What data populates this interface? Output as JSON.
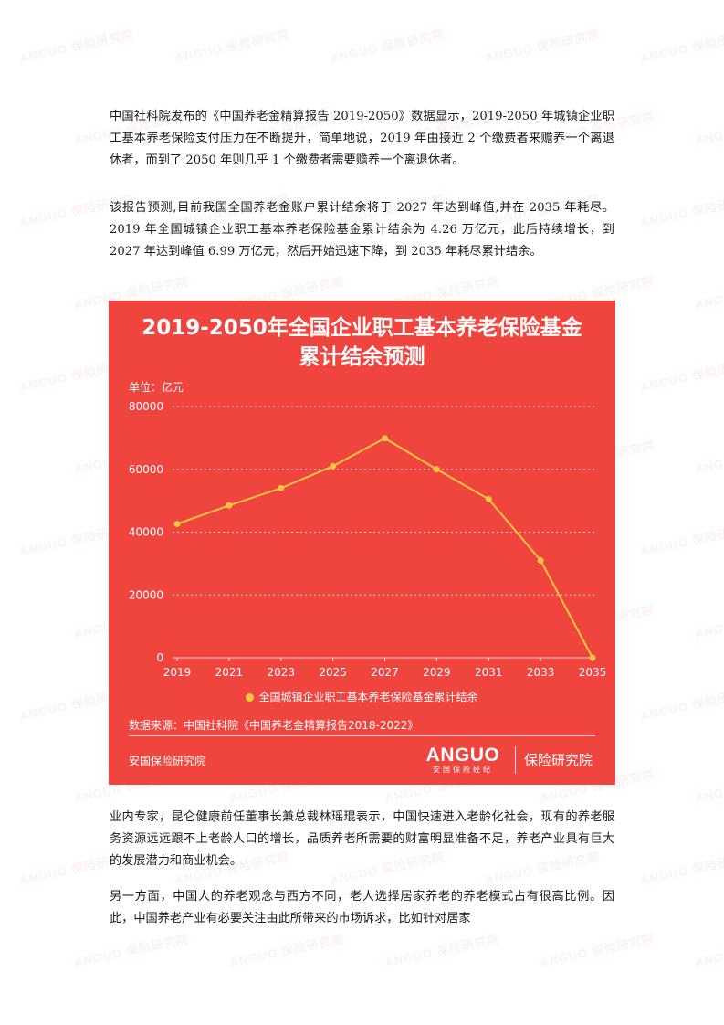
{
  "watermark": {
    "text": "ANGUO",
    "sub": "保险研究院"
  },
  "paragraphs": {
    "p1": "中国社科院发布的《中国养老金精算报告 2019-2050》数据显示，2019-2050 年城镇企业职工基本养老保险支付压力在不断提升，简单地说，2019 年由接近 2 个缴费者来赡养一个离退休者，而到了 2050 年则几乎 1 个缴费者需要赡养一个离退休者。",
    "p2": "该报告预测,目前我国全国养老金账户累计结余将于 2027 年达到峰值,并在 2035 年耗尽。2019 年全国城镇企业职工基本养老保险基金累计结余为 4.26 万亿元，此后持续增长，到 2027 年达到峰值 6.99 万亿元，然后开始迅速下降，到 2035 年耗尽累计结余。",
    "p3": "业内专家，昆仑健康前任董事长兼总裁林瑶琨表示，中国快速进入老龄化社会，现有的养老服务资源远远跟不上老龄人口的增长，品质养老所需要的财富明显准备不足，养老产业具有巨大的发展潜力和商业机会。",
    "p4": "另一方面，中国人的养老观念与西方不同，老人选择居家养老的养老模式占有很高比例。因此，中国养老产业有必要关注由此所带来的市场诉求，比如针对居家"
  },
  "chart_card": {
    "title_line1": "2019-2050年全国企业职工基本养老保险基金",
    "title_line2": "累计结余预测",
    "unit": "单位：亿元",
    "source": "数据来源：中国社科院《中国养老金精算报告2018-2022》",
    "footer_left": "安国保险研究院",
    "brand_main": "ANGUO",
    "brand_sub": "安国保险经纪",
    "brand_right": "保险研究院"
  },
  "colors": {
    "card_bg": "#f0453f",
    "line": "#f4c63d",
    "text": "#ffffff"
  },
  "chart_data": {
    "type": "line",
    "x": [
      2019,
      2020,
      2021,
      2022,
      2023,
      2024,
      2025,
      2026,
      2027,
      2028,
      2029,
      2030,
      2031,
      2032,
      2033,
      2034,
      2035
    ],
    "x_tick_labels": [
      "2019",
      "2021",
      "2023",
      "2025",
      "2027",
      "2029",
      "2031",
      "2033",
      "2035"
    ],
    "y_ticks": [
      0,
      20000,
      40000,
      60000,
      80000
    ],
    "ylim": [
      0,
      80000
    ],
    "grid": true,
    "legend_position": "bottom",
    "series": [
      {
        "name": "全国城镇企业职工基本养老保险基金累计结余",
        "points": [
          [
            2019,
            42600
          ],
          [
            2021,
            48500
          ],
          [
            2023,
            54000
          ],
          [
            2025,
            61000
          ],
          [
            2027,
            69900
          ],
          [
            2029,
            60000
          ],
          [
            2031,
            50500
          ],
          [
            2033,
            31000
          ],
          [
            2035,
            0
          ]
        ]
      }
    ]
  }
}
